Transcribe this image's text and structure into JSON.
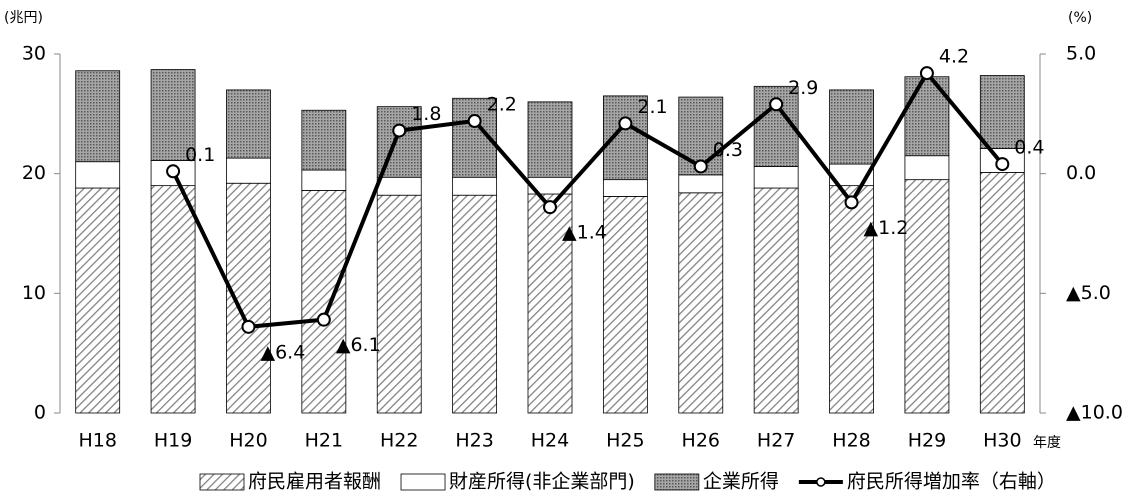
{
  "chart_data": {
    "type": "bar",
    "y_unit": "(兆円)",
    "y2_unit": "(%)",
    "x_unit": "年度",
    "categories": [
      "H18",
      "H19",
      "H20",
      "H21",
      "H22",
      "H23",
      "H24",
      "H25",
      "H26",
      "H27",
      "H28",
      "H29",
      "H30"
    ],
    "ylim": [
      0,
      30
    ],
    "yticks": [
      0,
      10,
      20,
      30
    ],
    "y2lim": [
      -10,
      5
    ],
    "y2ticks": [
      {
        "value": -10,
        "label": "▲10.0"
      },
      {
        "value": -5,
        "label": "▲5.0"
      },
      {
        "value": 0,
        "label": "0.0"
      },
      {
        "value": 5,
        "label": "5.0"
      }
    ],
    "stacked": true,
    "series": [
      {
        "name": "府民雇用者報酬",
        "color": "#7f7f7f",
        "pattern": "hatch",
        "values": [
          18.8,
          19.0,
          19.2,
          18.6,
          18.2,
          18.2,
          18.3,
          18.1,
          18.4,
          18.8,
          19.0,
          19.5,
          20.1
        ]
      },
      {
        "name": "財産所得(非企業部門)",
        "color": "#ffffff",
        "pattern": "solid",
        "values": [
          2.2,
          2.1,
          2.1,
          1.7,
          1.5,
          1.5,
          1.4,
          1.4,
          1.5,
          1.8,
          1.8,
          2.0,
          2.0
        ]
      },
      {
        "name": "企業所得",
        "color": "#7f7f7f",
        "pattern": "dots",
        "values": [
          7.6,
          7.6,
          5.7,
          5.0,
          5.9,
          6.6,
          6.3,
          7.0,
          6.5,
          6.7,
          6.2,
          6.6,
          6.1
        ]
      },
      {
        "name": "府民所得増加率（右軸）",
        "color": "#000000",
        "type": "line",
        "axis": "y2",
        "values": [
          null,
          0.1,
          -6.4,
          -6.1,
          1.8,
          2.2,
          -1.4,
          2.1,
          0.3,
          2.9,
          -1.2,
          4.2,
          0.4
        ],
        "value_labels": [
          null,
          "0.1",
          "▲6.4",
          "▲6.1",
          "1.8",
          "2.2",
          "▲1.4",
          "2.1",
          "0.3",
          "2.9",
          "▲1.2",
          "4.2",
          "0.4"
        ]
      }
    ]
  }
}
